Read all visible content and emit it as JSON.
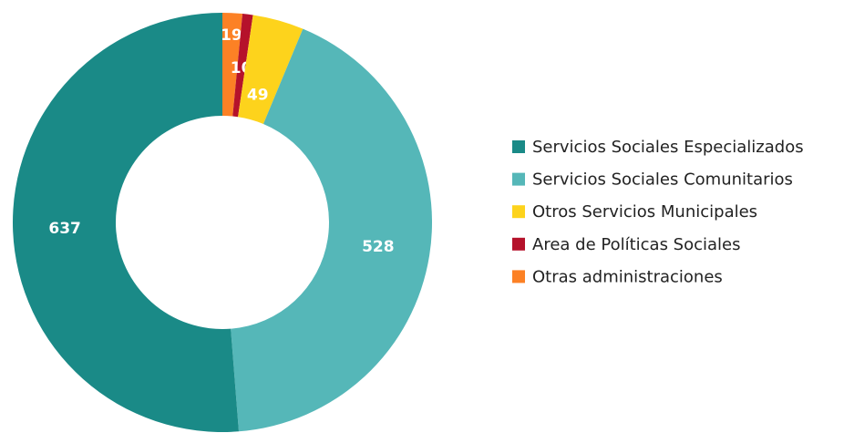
{
  "chart_data": {
    "type": "donut",
    "categories": [
      "Servicios Sociales Especializados",
      "Servicios Sociales Comunitarios",
      "Otros Servicios Municipales",
      "Area de Políticas Sociales",
      "Otras administraciones"
    ],
    "values": [
      637,
      528,
      49,
      10,
      19
    ],
    "colors": [
      "#1a8a87",
      "#55b7b8",
      "#fdd31c",
      "#b5122b",
      "#fc8125"
    ],
    "legend": "right"
  }
}
